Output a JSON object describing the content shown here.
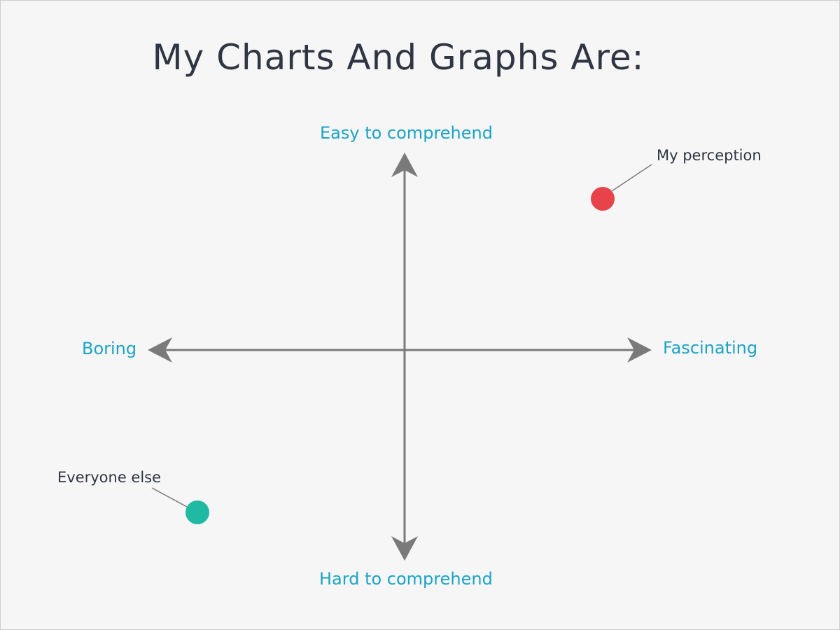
{
  "title": "My Charts And Graphs Are:",
  "axes": {
    "top": "Easy to comprehend",
    "bottom": "Hard to comprehend",
    "left": "Boring",
    "right": "Fascinating"
  },
  "points": [
    {
      "label": "My perception",
      "color": "#e8434a"
    },
    {
      "label": "Everyone else",
      "color": "#1fb9a4"
    }
  ],
  "colors": {
    "title": "#2f3542",
    "axis_label": "#1ba3c6",
    "point_label": "#2f3542",
    "axis_line": "#7a7a7a",
    "background": "#f6f6f6"
  }
}
